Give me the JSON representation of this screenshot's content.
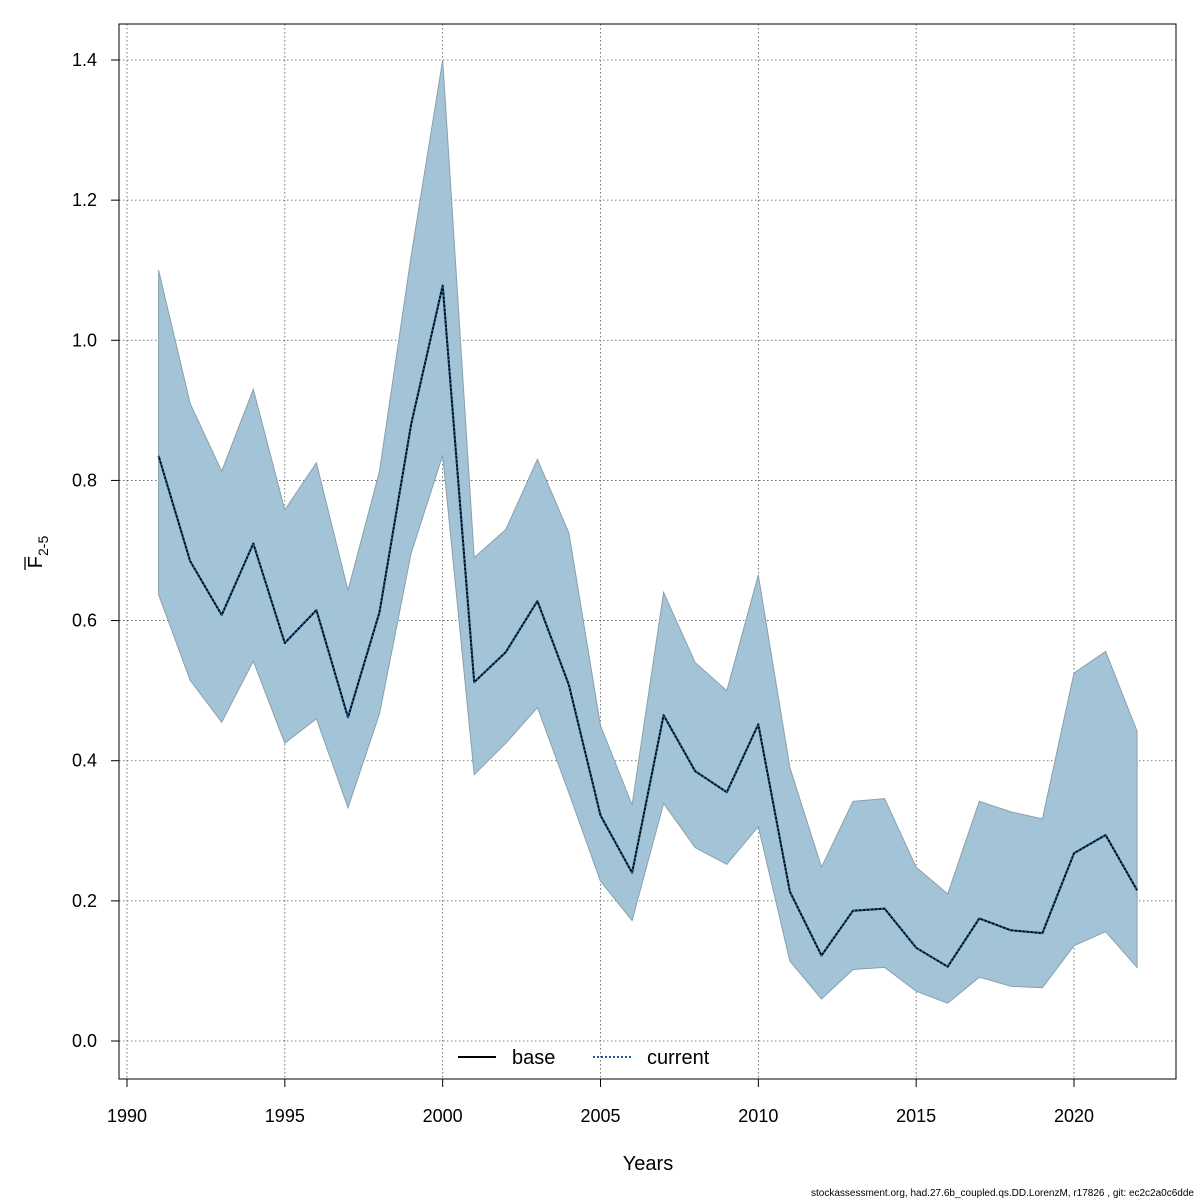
{
  "chart_data": {
    "type": "line",
    "title": "",
    "xlabel": "Years",
    "ylabel_main": "F",
    "ylabel_sub": "2-5",
    "xlim": [
      1990,
      2022
    ],
    "ylim": [
      0.0,
      1.4
    ],
    "x_ticks": [
      1990,
      1995,
      2000,
      2005,
      2010,
      2015,
      2020
    ],
    "y_ticks": [
      0.0,
      0.2,
      0.4,
      0.6,
      0.8,
      1.0,
      1.2,
      1.4
    ],
    "x_tick_labels": [
      "1990",
      "1995",
      "2000",
      "2005",
      "2010",
      "2015",
      "2020"
    ],
    "y_tick_labels": [
      "0.0",
      "0.2",
      "0.4",
      "0.6",
      "0.8",
      "1.0",
      "1.2",
      "1.4"
    ],
    "grid": true,
    "legend_position": "bottom-center",
    "x": [
      1991,
      1992,
      1993,
      1994,
      1995,
      1996,
      1997,
      1998,
      1999,
      2000,
      2001,
      2002,
      2003,
      2004,
      2005,
      2006,
      2007,
      2008,
      2009,
      2010,
      2011,
      2012,
      2013,
      2014,
      2015,
      2016,
      2017,
      2018,
      2019,
      2020,
      2021,
      2022
    ],
    "band": {
      "lower": [
        0.637,
        0.515,
        0.455,
        0.542,
        0.425,
        0.46,
        0.333,
        0.467,
        0.696,
        0.836,
        0.38,
        0.425,
        0.476,
        0.354,
        0.228,
        0.172,
        0.339,
        0.276,
        0.252,
        0.306,
        0.114,
        0.06,
        0.102,
        0.105,
        0.071,
        0.054,
        0.091,
        0.078,
        0.076,
        0.136,
        0.156,
        0.105
      ],
      "upper": [
        1.1,
        0.91,
        0.813,
        0.93,
        0.758,
        0.825,
        0.643,
        0.813,
        1.12,
        1.4,
        0.69,
        0.73,
        0.83,
        0.725,
        0.45,
        0.337,
        0.64,
        0.54,
        0.5,
        0.665,
        0.39,
        0.248,
        0.342,
        0.346,
        0.248,
        0.21,
        0.342,
        0.327,
        0.317,
        0.525,
        0.556,
        0.442
      ],
      "color": "#a3c4d6"
    },
    "series": [
      {
        "name": "base",
        "style": "solid",
        "color": "#000000",
        "values": [
          0.835,
          0.685,
          0.608,
          0.71,
          0.568,
          0.615,
          0.462,
          0.612,
          0.88,
          1.078,
          0.512,
          0.555,
          0.628,
          0.508,
          0.322,
          0.24,
          0.465,
          0.385,
          0.355,
          0.452,
          0.213,
          0.122,
          0.186,
          0.189,
          0.133,
          0.106,
          0.175,
          0.158,
          0.154,
          0.268,
          0.294,
          0.215
        ]
      },
      {
        "name": "current",
        "style": "dotted",
        "color": "#1a5a96",
        "values": [
          0.835,
          0.685,
          0.608,
          0.71,
          0.568,
          0.615,
          0.462,
          0.612,
          0.88,
          1.078,
          0.512,
          0.555,
          0.628,
          0.508,
          0.322,
          0.24,
          0.465,
          0.385,
          0.355,
          0.452,
          0.213,
          0.122,
          0.186,
          0.189,
          0.133,
          0.106,
          0.175,
          0.158,
          0.154,
          0.268,
          0.294,
          0.215
        ]
      }
    ]
  },
  "legend": {
    "base_label": "base",
    "current_label": "current"
  },
  "footer": {
    "text": "stockassessment.org, had.27.6b_coupled.qs.DD.LorenzM, r17826 , git: ec2c2a0c6dde"
  }
}
